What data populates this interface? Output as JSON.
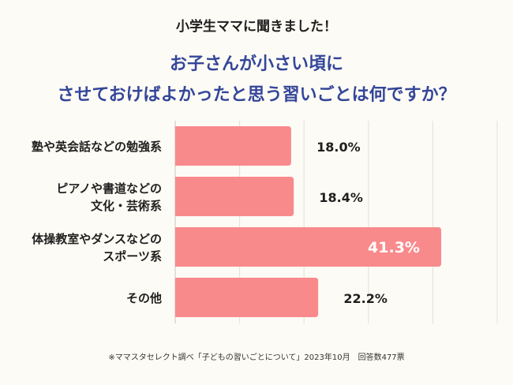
{
  "header": {
    "subtitle": "小学生ママに聞きました！",
    "title_line1": "お子さんが小さい頃に",
    "title_line2": "させておけばよかったと思う習いごとは何ですか？"
  },
  "colors": {
    "title": "#34469a",
    "bar": "#f98a8c",
    "highlight_label": "#ffffff",
    "background": "#fdfbf5",
    "grid": "#e3e0d8"
  },
  "chart_data": {
    "type": "bar",
    "orientation": "horizontal",
    "categories": [
      [
        "塾や英会話などの勉強系"
      ],
      [
        "ピアノや書道などの",
        "文化・芸術系"
      ],
      [
        "体操教室やダンスなどの",
        "スポーツ系"
      ],
      [
        "その他"
      ]
    ],
    "values": [
      18.0,
      18.4,
      41.3,
      22.2
    ],
    "value_labels": [
      "18.0%",
      "18.4%",
      "41.3%",
      "22.2%"
    ],
    "highlight_index": 2,
    "xlim": [
      0,
      50
    ],
    "grid": true,
    "title": "させておけばよかったと思う習いごとは何ですか？",
    "xlabel": "",
    "ylabel": ""
  },
  "footnote": "※ママスタセレクト調べ「子どもの習いごとについて」2023年10月　回答数477票"
}
